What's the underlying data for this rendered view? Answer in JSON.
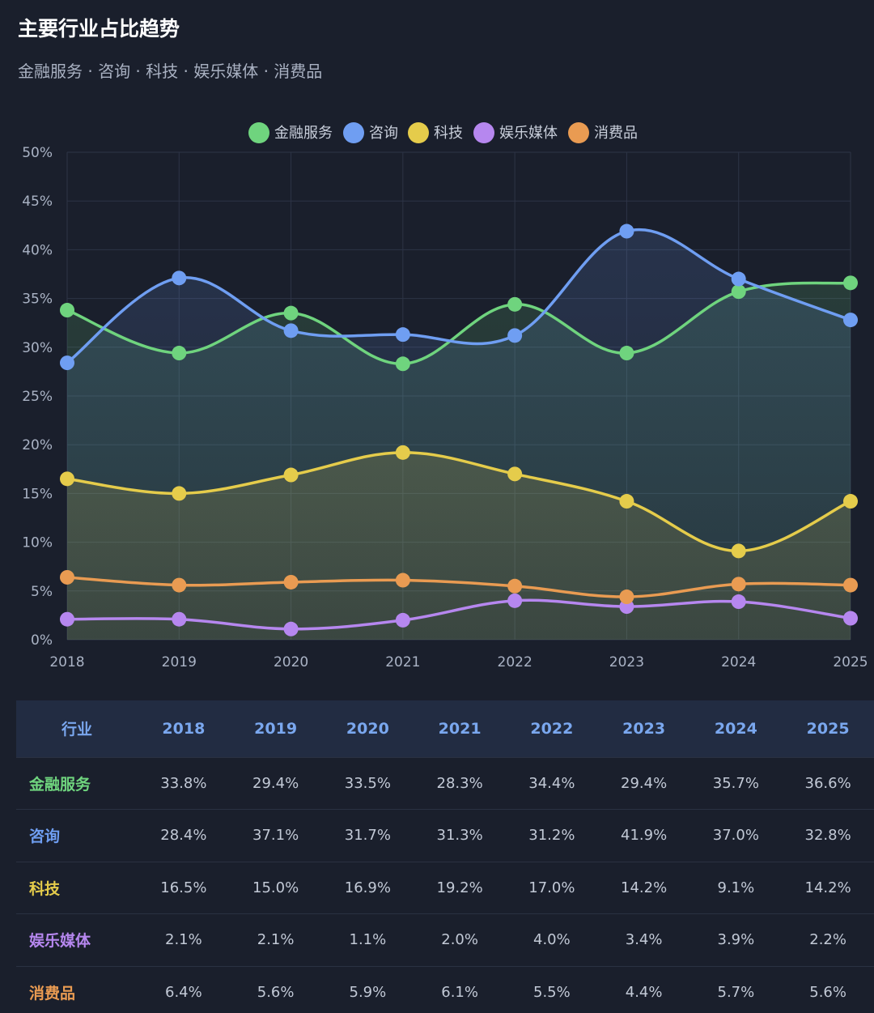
{
  "header": {
    "title": "主要行业占比趋势",
    "subtitle": "金融服务 · 咨询 · 科技 · 娱乐媒体 · 消费品"
  },
  "chart_data": {
    "type": "line",
    "categories": [
      "2018",
      "2019",
      "2020",
      "2021",
      "2022",
      "2023",
      "2024",
      "2025"
    ],
    "ylim": [
      0,
      50
    ],
    "yticks": [
      0,
      5,
      10,
      15,
      20,
      25,
      30,
      35,
      40,
      45,
      50
    ],
    "ytick_labels": [
      "0%",
      "5%",
      "10%",
      "15%",
      "20%",
      "25%",
      "30%",
      "35%",
      "40%",
      "45%",
      "50%"
    ],
    "legend_position": "top-center",
    "series": [
      {
        "name": "金融服务",
        "color": "#6fd47e",
        "fill": true,
        "values": [
          33.8,
          29.4,
          33.5,
          28.3,
          34.4,
          29.4,
          35.7,
          36.6
        ]
      },
      {
        "name": "咨询",
        "color": "#6f9ef2",
        "fill": true,
        "values": [
          28.4,
          37.1,
          31.7,
          31.3,
          31.2,
          41.9,
          37.0,
          32.8
        ]
      },
      {
        "name": "科技",
        "color": "#e5cc4b",
        "fill": true,
        "values": [
          16.5,
          15.0,
          16.9,
          19.2,
          17.0,
          14.2,
          9.1,
          14.2
        ]
      },
      {
        "name": "娱乐媒体",
        "color": "#b687ef",
        "fill": false,
        "values": [
          2.1,
          2.1,
          1.1,
          2.0,
          4.0,
          3.4,
          3.9,
          2.2
        ]
      },
      {
        "name": "消费品",
        "color": "#e99b52",
        "fill": false,
        "values": [
          6.4,
          5.6,
          5.9,
          6.1,
          5.5,
          4.4,
          5.7,
          5.6
        ]
      }
    ]
  },
  "table": {
    "headers": [
      "行业",
      "2018",
      "2019",
      "2020",
      "2021",
      "2022",
      "2023",
      "2024",
      "2025"
    ],
    "rows": [
      {
        "industry": "金融服务",
        "color": "#6fd47e",
        "cells": [
          "33.8%",
          "29.4%",
          "33.5%",
          "28.3%",
          "34.4%",
          "29.4%",
          "35.7%",
          "36.6%"
        ]
      },
      {
        "industry": "咨询",
        "color": "#6f9ef2",
        "cells": [
          "28.4%",
          "37.1%",
          "31.7%",
          "31.3%",
          "31.2%",
          "41.9%",
          "37.0%",
          "32.8%"
        ]
      },
      {
        "industry": "科技",
        "color": "#e5cc4b",
        "cells": [
          "16.5%",
          "15.0%",
          "16.9%",
          "19.2%",
          "17.0%",
          "14.2%",
          "9.1%",
          "14.2%"
        ]
      },
      {
        "industry": "娱乐媒体",
        "color": "#b687ef",
        "cells": [
          "2.1%",
          "2.1%",
          "1.1%",
          "2.0%",
          "4.0%",
          "3.4%",
          "3.9%",
          "2.2%"
        ]
      },
      {
        "industry": "消费品",
        "color": "#e99b52",
        "cells": [
          "6.4%",
          "5.6%",
          "5.9%",
          "6.1%",
          "5.5%",
          "4.4%",
          "5.7%",
          "5.6%"
        ]
      }
    ]
  }
}
